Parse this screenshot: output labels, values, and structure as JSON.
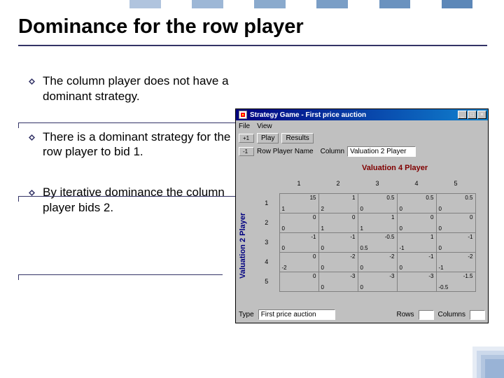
{
  "topbar_colors": [
    "#b0c4de",
    "#ffffff",
    "#9db7d6",
    "#ffffff",
    "#8aaacd",
    "#ffffff",
    "#7a9ec6",
    "#ffffff",
    "#6a92bf",
    "#ffffff",
    "#5c87b8",
    "#ffffff"
  ],
  "title": "Dominance for the row player",
  "bullets": [
    "The column player does not have a dominant strategy.",
    "There is a dominant strategy for the row player to bid 1.",
    "By iterative dominance the column player bids 2."
  ],
  "window": {
    "title": "Strategy Game - First price auction",
    "menu": [
      "File",
      "View"
    ],
    "buttons": {
      "play": "Play",
      "results": "Results"
    },
    "spinners": {
      "minus_one": "-1",
      "plus_one": "+1"
    },
    "param_labels": {
      "row": "Row Player Name",
      "col": "Column"
    },
    "param_field": "Valuation 2 Player",
    "col_player_label": "Valuation 4 Player",
    "row_player_label": "Valuation 2 Player",
    "columns": [
      "1",
      "2",
      "3",
      "4",
      "5"
    ],
    "rows": [
      "1",
      "2",
      "3",
      "4",
      "5"
    ],
    "payoffs": [
      [
        [
          "15",
          "1"
        ],
        [
          "1",
          "2"
        ],
        [
          "0.5",
          "0"
        ],
        [
          "0.5",
          "0"
        ],
        [
          "0.5",
          "0"
        ]
      ],
      [
        [
          "0",
          "0"
        ],
        [
          "0",
          "1"
        ],
        [
          "1",
          "1"
        ],
        [
          "0",
          "0"
        ],
        [
          "0",
          "0"
        ]
      ],
      [
        [
          "-1",
          "0"
        ],
        [
          "-1",
          "0"
        ],
        [
          "-0.5",
          "0.5"
        ],
        [
          "1",
          "-1"
        ],
        [
          "-1",
          "0"
        ]
      ],
      [
        [
          "0",
          "-2"
        ],
        [
          "-2",
          "0"
        ],
        [
          "-2",
          "0"
        ],
        [
          "-1",
          "0"
        ],
        [
          "-2",
          "-1"
        ]
      ],
      [
        [
          "0",
          ""
        ],
        [
          "-3",
          "0"
        ],
        [
          "-3",
          "0"
        ],
        [
          "-3",
          ""
        ],
        [
          "-1.5",
          "-0.5"
        ]
      ]
    ],
    "footer": {
      "type_label": "Type",
      "type_value": "First price auction",
      "rows_label": "Rows",
      "cols_label": "Columns"
    }
  },
  "corner_colors": [
    "#e6ecf5",
    "#ccd9eb",
    "#b3c6e0",
    "#99b3d6"
  ]
}
